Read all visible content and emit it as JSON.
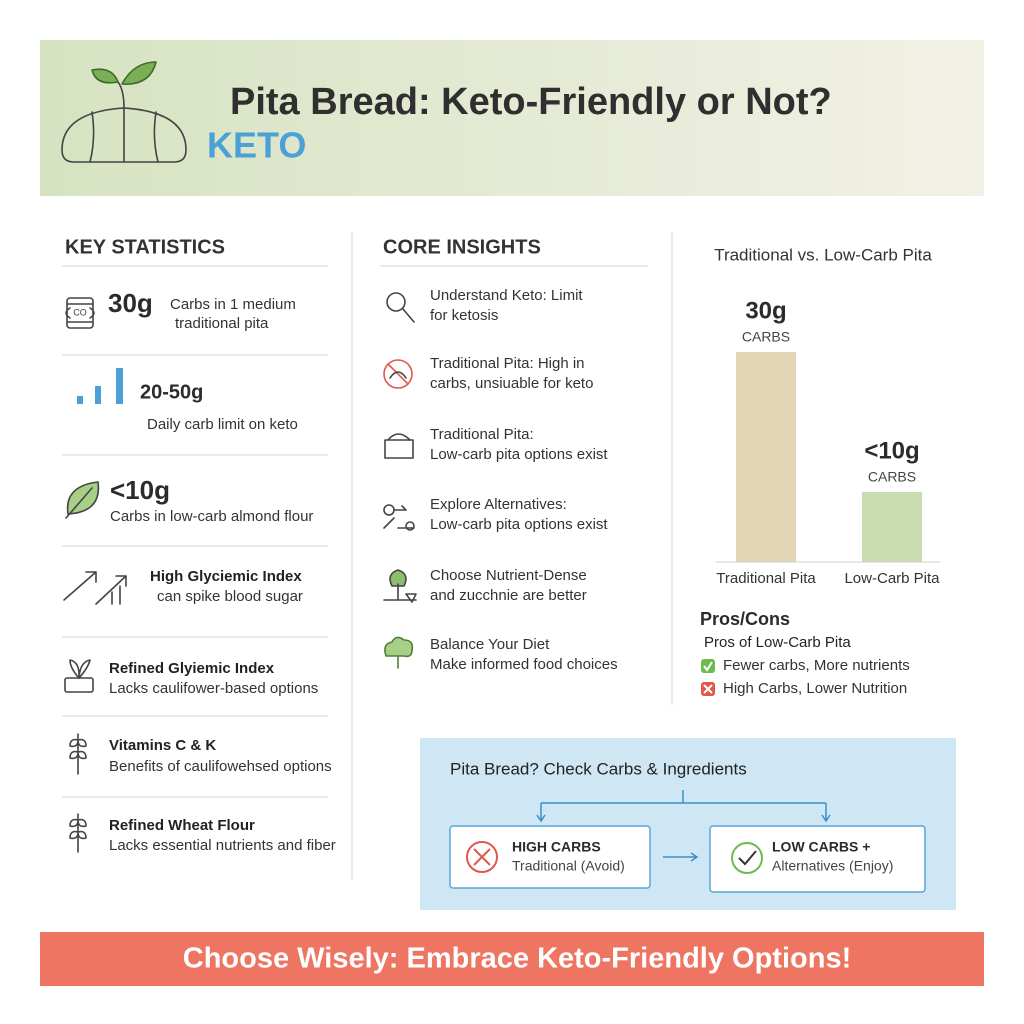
{
  "header": {
    "title": "Pita Bread: Keto-Friendly or Not?",
    "tag": "KETO"
  },
  "key_statistics": {
    "heading": "KEY STATISTICS",
    "items": [
      {
        "headline": "30g",
        "text": [
          "Carbs in 1 medium",
          "traditional pita"
        ]
      },
      {
        "headline": "20-50g",
        "text": [
          "Daily carb limit on keto"
        ]
      },
      {
        "headline": "<10g",
        "text": [
          "Carbs in low-carb almond flour"
        ]
      },
      {
        "headline": "High Glyciemic Index",
        "text": [
          "can spike blood sugar"
        ]
      },
      {
        "headline": "Refined Glyiemic Index",
        "text": [
          "Lacks caulifower-based options"
        ]
      },
      {
        "headline": "Vitamins C & K",
        "text": [
          "Benefits of caulifowehsed options"
        ]
      },
      {
        "headline": "Refined Wheat Flour",
        "text": [
          "Lacks essential nutrients and fiber"
        ]
      }
    ]
  },
  "core_insights": {
    "heading": "CORE INSIGHTS",
    "items": [
      [
        "Understand Keto: Limit",
        "for ketosis"
      ],
      [
        "Traditional Pita: High in",
        "carbs, unsiuable for keto"
      ],
      [
        "Traditional Pita:",
        "Low-carb pita options exist"
      ],
      [
        "Explore Alternatives:",
        "Low-carb pita options exist"
      ],
      [
        "Choose Nutrient-Dense",
        "and zucchnie are better"
      ],
      [
        "Balance Your Diet",
        "Make informed food choices"
      ]
    ]
  },
  "comparison_chart": {
    "type": "bar",
    "title": "Traditional vs. Low-Carb Pita",
    "categories": [
      "Traditional Pita",
      "Low-Carb Pita"
    ],
    "values": [
      30,
      10
    ],
    "value_labels": [
      "30g",
      "<10g"
    ],
    "value_units": [
      "CARBS",
      "CARBS"
    ],
    "colors": [
      "#e3d6b6",
      "#cadcb1"
    ]
  },
  "pros_cons": {
    "heading": "Pros/Cons",
    "subheading": "Pros of Low-Carb Pita",
    "pro": "Fewer carbs, More nutrients",
    "con": "High Carbs, Lower Nutrition"
  },
  "flow": {
    "question": "Pita Bread? Check Carbs & Ingredients",
    "left": {
      "title": "HIGH CARBS",
      "text": "Traditional (Avoid)"
    },
    "right": {
      "title": "LOW CARBS +",
      "text": "Alternatives (Enjoy)"
    }
  },
  "footer": {
    "text": "Choose Wisely: Embrace Keto-Friendly Options!"
  }
}
